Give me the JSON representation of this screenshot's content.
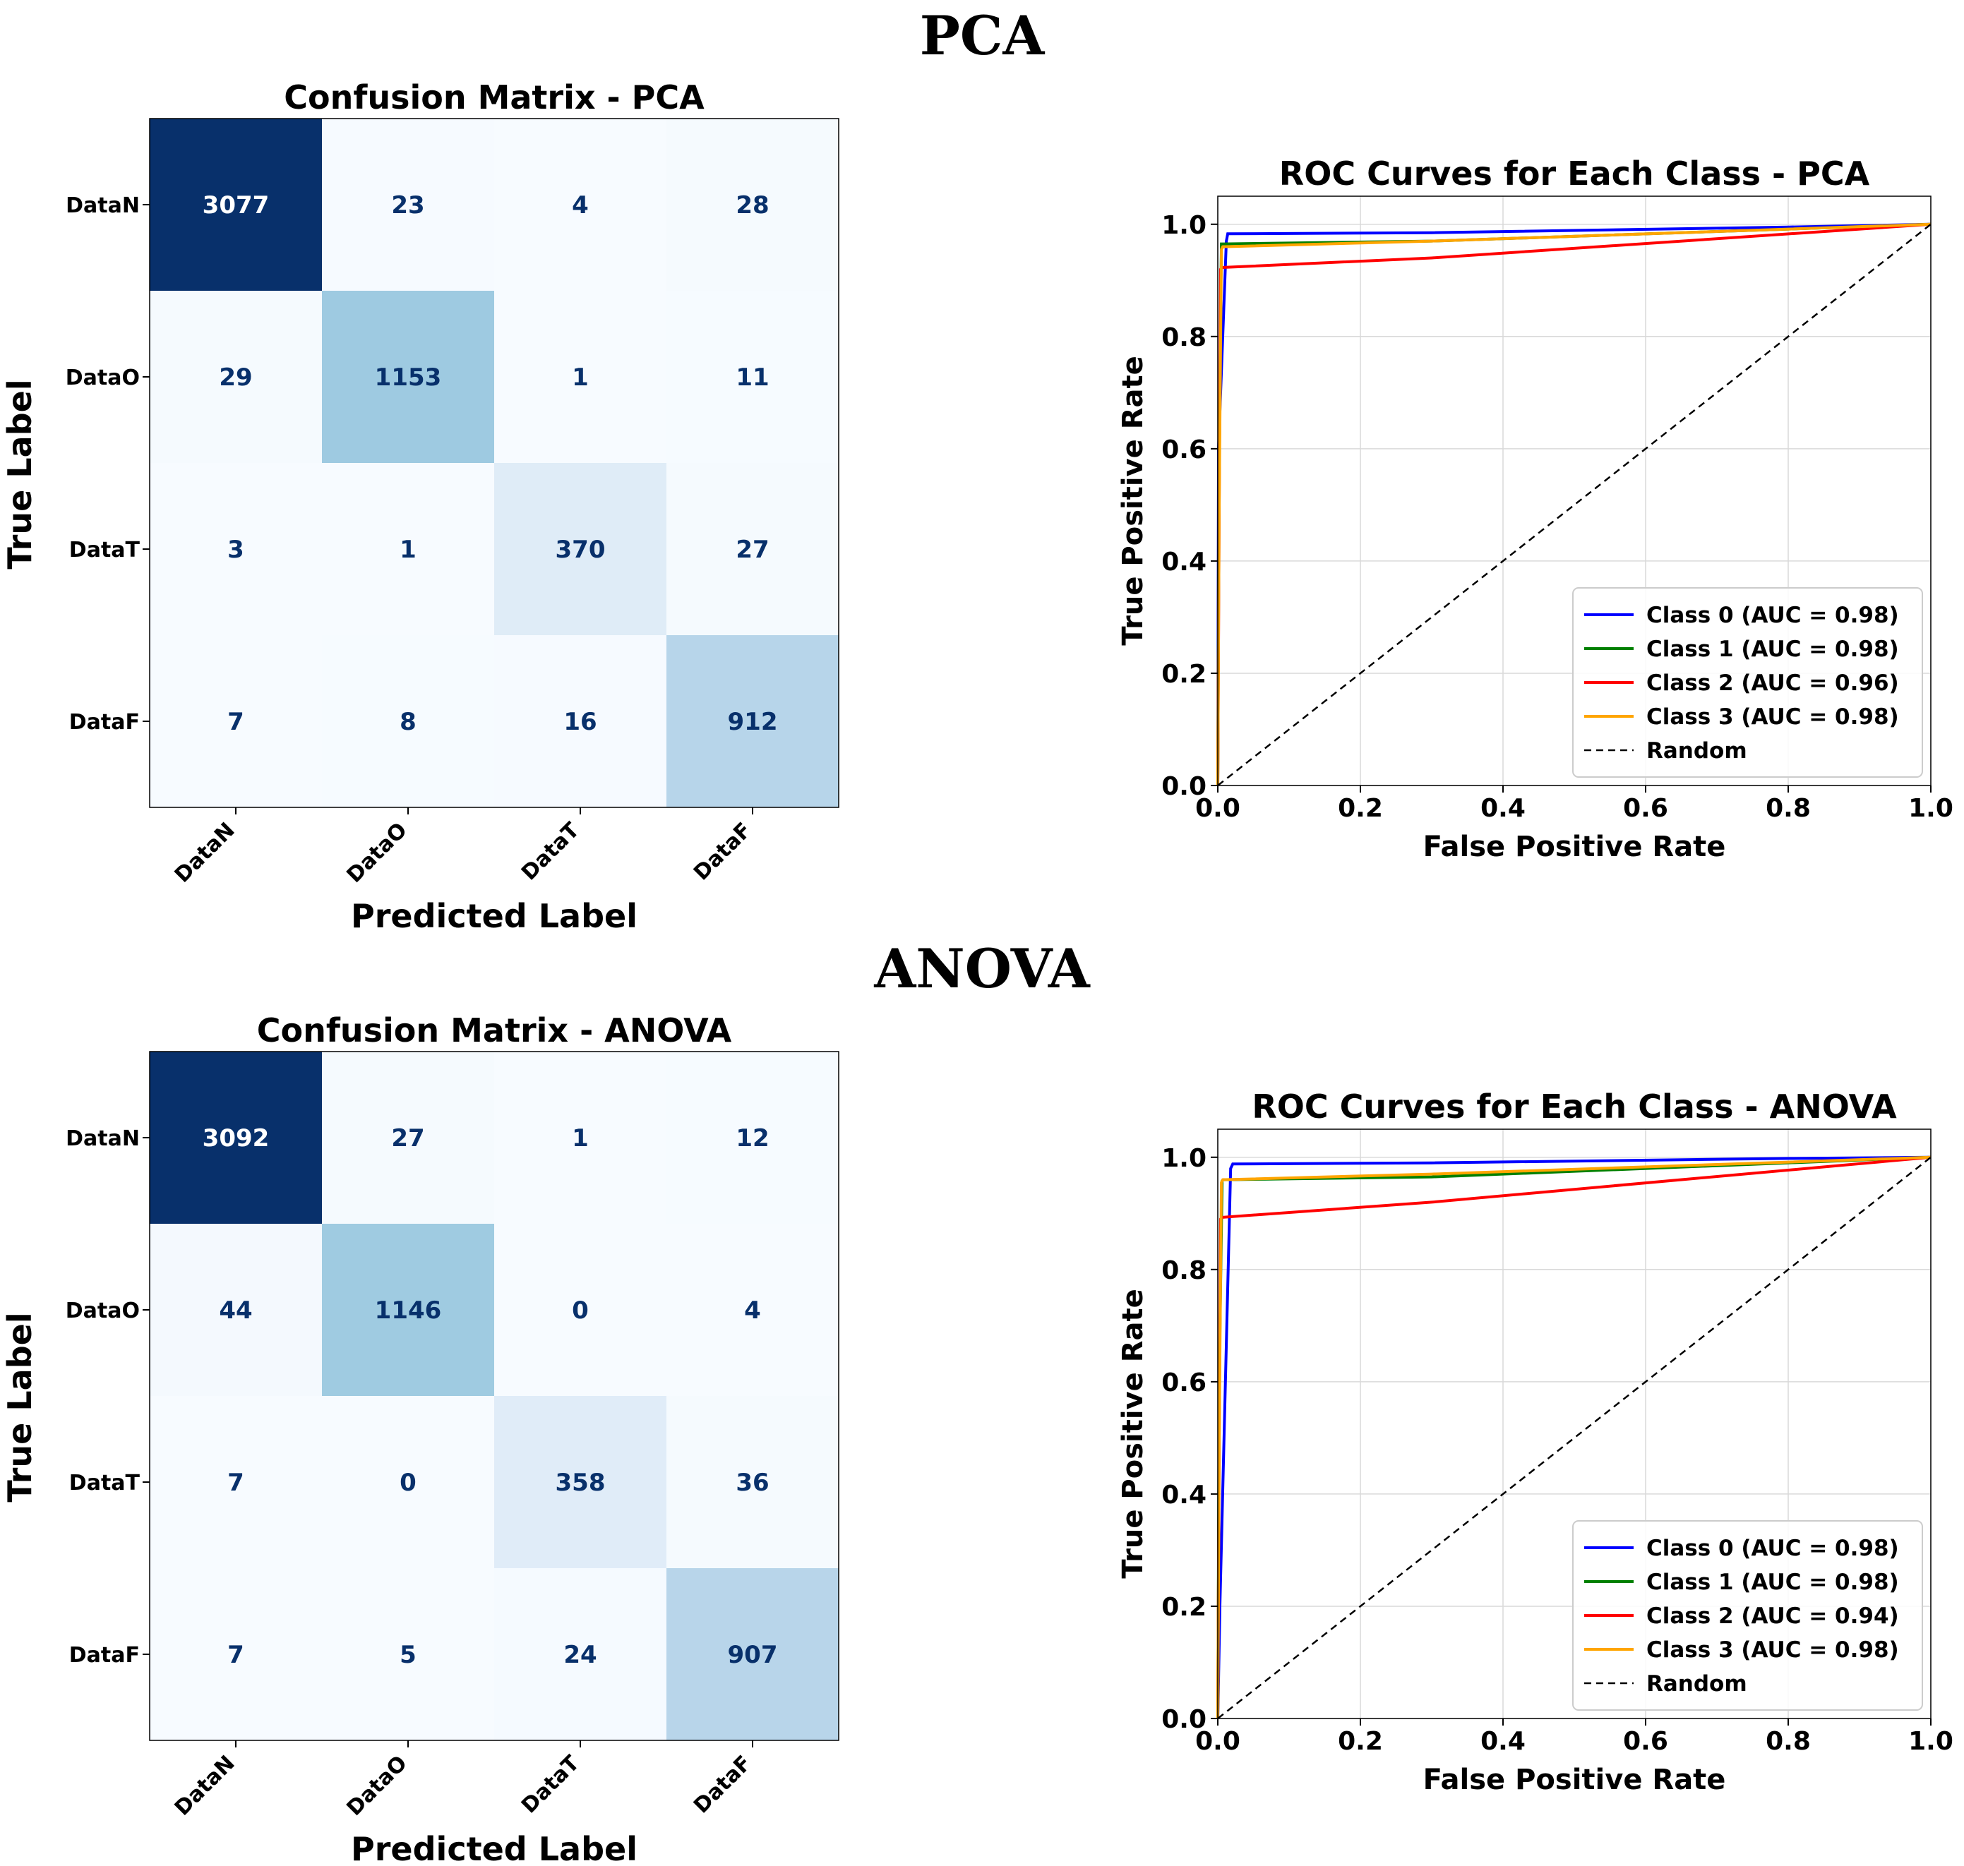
{
  "sections": {
    "pca": {
      "title": "PCA"
    },
    "anova": {
      "title": "ANOVA"
    }
  },
  "chart_data": [
    {
      "type": "heatmap",
      "title": "Confusion Matrix - PCA",
      "xlabel": "Predicted Label",
      "ylabel": "True Label",
      "row_labels": [
        "DataN",
        "DataO",
        "DataT",
        "DataF"
      ],
      "col_labels": [
        "DataN",
        "DataO",
        "DataT",
        "DataF"
      ],
      "values": [
        [
          3077,
          23,
          4,
          28
        ],
        [
          29,
          1153,
          1,
          11
        ],
        [
          3,
          1,
          370,
          27
        ],
        [
          7,
          8,
          16,
          912
        ]
      ],
      "colormap": "Blues",
      "max": 3077
    },
    {
      "type": "line",
      "title": "ROC Curves for Each Class - PCA",
      "xlabel": "False Positive Rate",
      "ylabel": "True Positive Rate",
      "xlim": [
        0,
        1.0
      ],
      "ylim": [
        0,
        1.05
      ],
      "xticks": [
        "0.0",
        "0.2",
        "0.4",
        "0.6",
        "0.8",
        "1.0"
      ],
      "yticks": [
        "0.0",
        "0.2",
        "0.4",
        "0.6",
        "0.8",
        "1.0"
      ],
      "grid": true,
      "legend_position": "lower-right",
      "series": [
        {
          "name": "Class 0 (AUC = 0.98)",
          "color": "#0000ff",
          "x": [
            0,
            0.001,
            0.012,
            0.014,
            0.3,
            0.8,
            1.0
          ],
          "y": [
            0,
            0.6,
            0.97,
            0.983,
            0.985,
            0.995,
            1.0
          ]
        },
        {
          "name": "Class 1 (AUC = 0.98)",
          "color": "#008000",
          "x": [
            0,
            0.002,
            0.005,
            0.007,
            0.3,
            1.0
          ],
          "y": [
            0,
            0.6,
            0.965,
            0.965,
            0.97,
            1.0
          ]
        },
        {
          "name": "Class 2 (AUC = 0.96)",
          "color": "#ff0000",
          "x": [
            0,
            0.002,
            0.004,
            0.006,
            0.3,
            1.0
          ],
          "y": [
            0,
            0.5,
            0.92,
            0.923,
            0.94,
            1.0
          ]
        },
        {
          "name": "Class 3 (AUC = 0.98)",
          "color": "#ffa500",
          "x": [
            0,
            0.002,
            0.005,
            0.007,
            0.3,
            1.0
          ],
          "y": [
            0,
            0.5,
            0.955,
            0.96,
            0.97,
            1.0
          ]
        },
        {
          "name": "Random",
          "color": "#000000",
          "dashed": true,
          "x": [
            0,
            1.0
          ],
          "y": [
            0,
            1.0
          ]
        }
      ]
    },
    {
      "type": "heatmap",
      "title": "Confusion Matrix - ANOVA",
      "xlabel": "Predicted Label",
      "ylabel": "True Label",
      "row_labels": [
        "DataN",
        "DataO",
        "DataT",
        "DataF"
      ],
      "col_labels": [
        "DataN",
        "DataO",
        "DataT",
        "DataF"
      ],
      "values": [
        [
          3092,
          27,
          1,
          12
        ],
        [
          44,
          1146,
          0,
          4
        ],
        [
          7,
          0,
          358,
          36
        ],
        [
          7,
          5,
          24,
          907
        ]
      ],
      "colormap": "Blues",
      "max": 3092
    },
    {
      "type": "line",
      "title": "ROC Curves for Each Class - ANOVA",
      "xlabel": "False Positive Rate",
      "ylabel": "True Positive Rate",
      "xlim": [
        0,
        1.0
      ],
      "ylim": [
        0,
        1.05
      ],
      "xticks": [
        "0.0",
        "0.2",
        "0.4",
        "0.6",
        "0.8",
        "1.0"
      ],
      "yticks": [
        "0.0",
        "0.2",
        "0.4",
        "0.6",
        "0.8",
        "1.0"
      ],
      "grid": true,
      "legend_position": "lower-right",
      "series": [
        {
          "name": "Class 0 (AUC = 0.98)",
          "color": "#0000ff",
          "x": [
            0,
            0.003,
            0.018,
            0.021,
            0.3,
            0.8,
            1.0
          ],
          "y": [
            0,
            0.2,
            0.98,
            0.988,
            0.99,
            0.998,
            1.0
          ]
        },
        {
          "name": "Class 1 (AUC = 0.98)",
          "color": "#008000",
          "x": [
            0,
            0.002,
            0.006,
            0.008,
            0.3,
            1.0
          ],
          "y": [
            0,
            0.6,
            0.958,
            0.96,
            0.965,
            1.0
          ]
        },
        {
          "name": "Class 2 (AUC = 0.94)",
          "color": "#ff0000",
          "x": [
            0,
            0.002,
            0.004,
            0.006,
            0.3,
            1.0
          ],
          "y": [
            0,
            0.5,
            0.89,
            0.893,
            0.92,
            1.0
          ]
        },
        {
          "name": "Class 3 (AUC = 0.98)",
          "color": "#ffa500",
          "x": [
            0,
            0.002,
            0.005,
            0.007,
            0.3,
            1.0
          ],
          "y": [
            0,
            0.5,
            0.955,
            0.96,
            0.97,
            1.0
          ]
        },
        {
          "name": "Random",
          "color": "#000000",
          "dashed": true,
          "x": [
            0,
            1.0
          ],
          "y": [
            0,
            1.0
          ]
        }
      ]
    }
  ]
}
